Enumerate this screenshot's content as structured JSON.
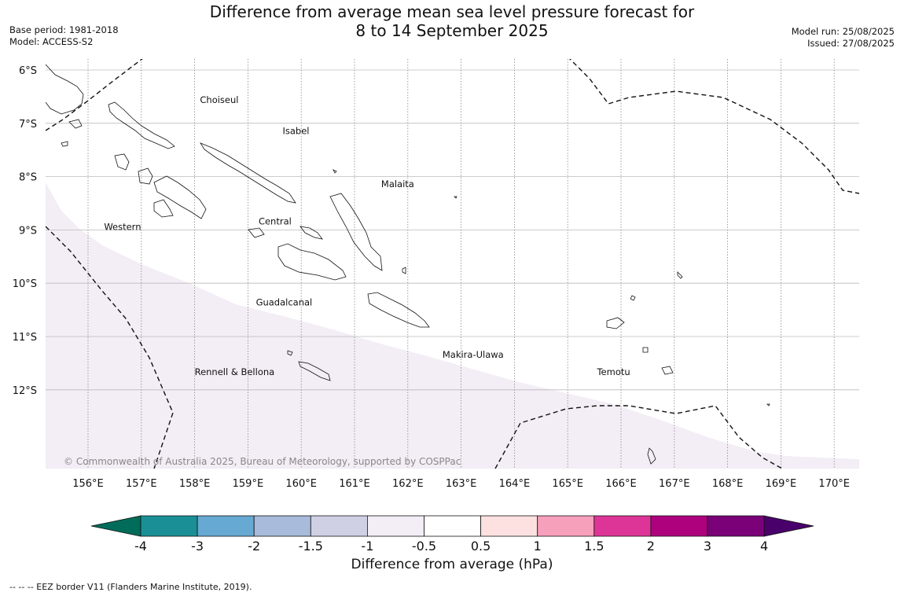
{
  "title": {
    "line1": "Difference from average mean sea level pressure forecast for",
    "line2": "8 to 14 September 2025"
  },
  "meta_left": {
    "base_period": "Base period: 1981-2018",
    "model": "Model: ACCESS-S2"
  },
  "meta_right": {
    "model_run": "Model run: 25/08/2025",
    "issued": "Issued: 27/08/2025"
  },
  "map": {
    "lat_labels": [
      "6°S",
      "7°S",
      "8°S",
      "9°S",
      "10°S",
      "11°S",
      "12°S"
    ],
    "lon_labels": [
      "156°E",
      "157°E",
      "158°E",
      "159°E",
      "160°E",
      "161°E",
      "162°E",
      "163°E",
      "164°E",
      "165°E",
      "166°E",
      "167°E",
      "168°E",
      "169°E",
      "170°E"
    ],
    "regions": [
      {
        "name": "Choiseul",
        "lon": 158.1,
        "lat": -6.62
      },
      {
        "name": "Isabel",
        "lon": 159.65,
        "lat": -7.2
      },
      {
        "name": "Malaita",
        "lon": 161.5,
        "lat": -8.2
      },
      {
        "name": "Western",
        "lon": 156.3,
        "lat": -9.0
      },
      {
        "name": "Central",
        "lon": 159.2,
        "lat": -8.9
      },
      {
        "name": "Guadalcanal",
        "lon": 159.15,
        "lat": -10.42
      },
      {
        "name": "Makira-Ulawa",
        "lon": 162.65,
        "lat": -11.4
      },
      {
        "name": "Rennell & Bellona",
        "lon": 158.0,
        "lat": -11.72
      },
      {
        "name": "Temotu",
        "lon": 165.55,
        "lat": -11.72
      }
    ],
    "copyright": "© Commonwealth of Australia 2025, Bureau of Meteorology, supported by COSPPac"
  },
  "colorbar": {
    "ticks": [
      "-4",
      "-3",
      "-2",
      "-1.5",
      "-1",
      "-0.5",
      "0.5",
      "1",
      "1.5",
      "2",
      "3",
      "4"
    ],
    "colors": [
      "#1a8f96",
      "#66a9d2",
      "#a8bbdb",
      "#cfd0e4",
      "#f3edf6",
      "#ffffff",
      "#fde0e0",
      "#f6a0bc",
      "#dd3597",
      "#ae017e",
      "#7a0177"
    ],
    "under_color": "#016c59",
    "over_color": "#49006a",
    "label": "Difference from average (hPa)"
  },
  "footnote": "--  --  -- EEZ border V11 (Flanders Marine Institute, 2019)."
}
